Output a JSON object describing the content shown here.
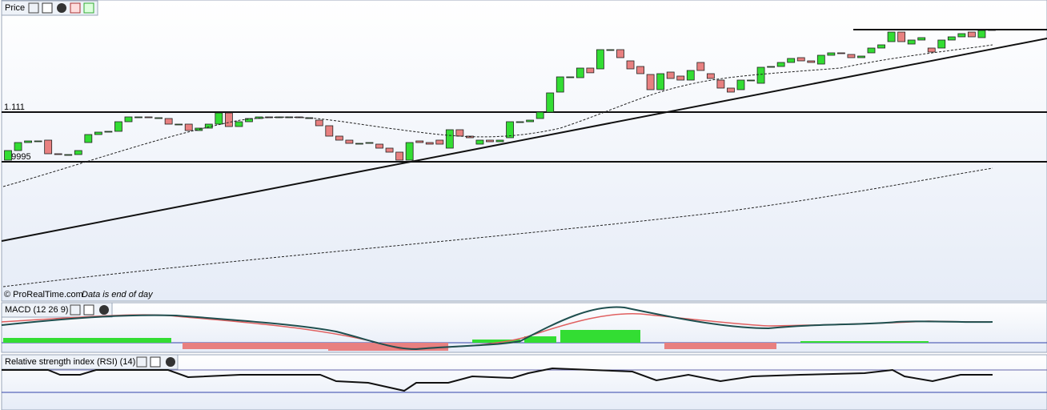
{
  "panels": {
    "price": {
      "type": "candlestick",
      "title": "Price",
      "ylim": [
        0.688,
        1.327
      ],
      "levels": [
        1.111,
        0.9995
      ],
      "up_color": "#33dd33",
      "down_color": "#e88080",
      "candles": {
        "open": [
          1.003,
          1.0246,
          1.0426,
          1.0462,
          1.048,
          1.0174,
          1.0156,
          1.0156,
          1.0426,
          1.0606,
          1.066,
          1.0678,
          1.0894,
          1.1002,
          1.1002,
          1.0984,
          1.0966,
          1.084,
          1.084,
          1.0696,
          1.075,
          1.084,
          1.1092,
          1.0786,
          1.0894,
          1.0966,
          1.1002,
          1.0984,
          1.1002,
          1.1002,
          1.0984,
          1.093,
          1.0804,
          1.057,
          1.048,
          1.0408,
          1.0408,
          1.039,
          1.03,
          1.021,
          1.003,
          1.0462,
          1.0426,
          1.048,
          1.03,
          1.0714,
          1.057,
          1.039,
          1.048,
          1.0444,
          1.0534,
          1.0894,
          1.0894,
          1.0966,
          1.111,
          1.156,
          1.1902,
          1.1884,
          1.21,
          1.2082,
          1.2514,
          1.2514,
          1.2262,
          1.2136,
          1.1956,
          1.1614,
          1.201,
          1.192,
          1.183,
          1.2226,
          1.1974,
          1.183,
          1.165,
          1.1614,
          1.183,
          1.1758,
          1.2118,
          1.2136,
          1.2226,
          1.2334,
          1.2262,
          1.219,
          1.2388,
          1.2442,
          1.2406,
          1.2334,
          1.2442,
          1.255,
          1.2694,
          1.291,
          1.264,
          1.273,
          1.255,
          1.255,
          1.273,
          1.2802,
          1.291,
          1.2784,
          1.2946
        ],
        "close": [
          1.0246,
          1.0426,
          1.0462,
          1.0462,
          1.0174,
          1.0156,
          1.0156,
          1.0246,
          1.0606,
          1.066,
          1.0678,
          1.0894,
          1.1002,
          1.1002,
          1.0984,
          1.0984,
          1.084,
          1.084,
          1.0696,
          1.075,
          1.084,
          1.1092,
          1.0786,
          1.0894,
          1.0966,
          1.1002,
          1.0984,
          1.1002,
          1.1002,
          1.0984,
          1.0984,
          1.0804,
          1.057,
          1.048,
          1.0408,
          1.0408,
          1.0426,
          1.03,
          1.021,
          1.003,
          1.0426,
          1.0426,
          1.039,
          1.039,
          1.0714,
          1.057,
          1.0534,
          1.048,
          1.0444,
          1.048,
          1.0894,
          1.0894,
          1.093,
          1.111,
          1.1542,
          1.1902,
          1.1902,
          1.21,
          1.1994,
          1.2514,
          1.2514,
          1.2334,
          1.2082,
          1.1974,
          1.1614,
          1.1974,
          1.1866,
          1.183,
          1.2046,
          1.2046,
          1.1866,
          1.165,
          1.156,
          1.183,
          1.183,
          1.2118,
          1.2136,
          1.2226,
          1.2316,
          1.2262,
          1.2226,
          1.2388,
          1.2442,
          1.2424,
          1.2334,
          1.237,
          1.255,
          1.2622,
          1.291,
          1.2694,
          1.273,
          1.2784,
          1.246,
          1.273,
          1.2802,
          1.2874,
          1.2802,
          1.2946,
          1.2964
        ]
      },
      "credit": "© ProRealTime.com",
      "note": "Data is end of day"
    },
    "macd": {
      "title": "MACD (12 26 9)"
    },
    "rsi": {
      "title": "Relative strength index (RSI) (14)"
    }
  }
}
